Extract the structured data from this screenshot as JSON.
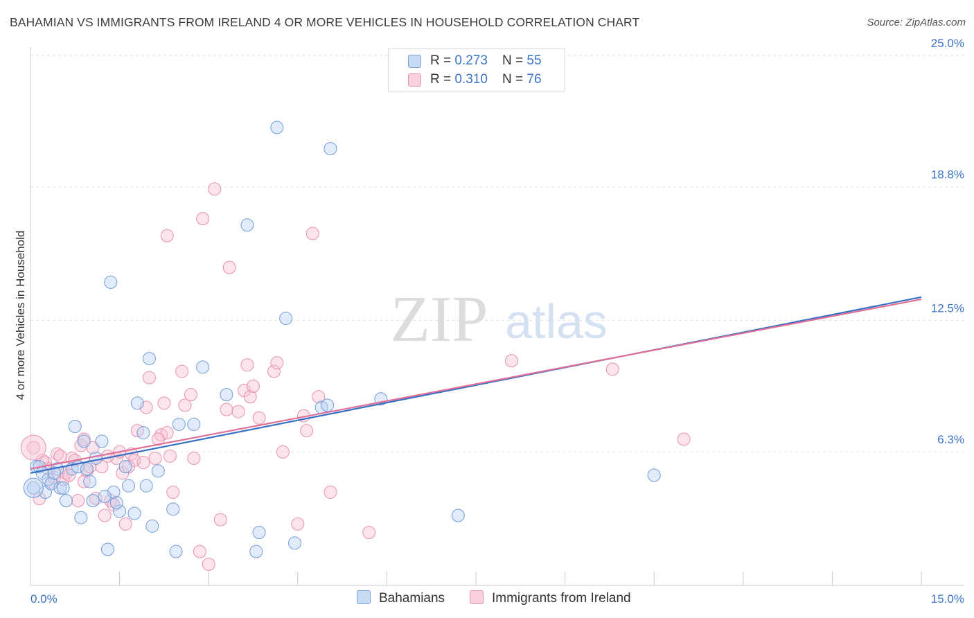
{
  "title": "BAHAMIAN VS IMMIGRANTS FROM IRELAND 4 OR MORE VEHICLES IN HOUSEHOLD CORRELATION CHART",
  "source": "Source: ZipAtlas.com",
  "watermark": {
    "zip": "ZIP",
    "atlas": "atlas"
  },
  "legend": {
    "rows": [
      {
        "r_label": "R = ",
        "r_value": "0.273",
        "n_label": "N = ",
        "n_value": "55",
        "color": "#9dbfef"
      },
      {
        "r_label": "R = ",
        "r_value": "0.310",
        "n_label": "N = ",
        "n_value": "76",
        "color": "#f4a9c1"
      }
    ]
  },
  "bottom_legend": {
    "bahamians": "Bahamians",
    "ireland": "Immigrants from Ireland"
  },
  "chart_data": {
    "type": "scatter",
    "title": "BAHAMIAN VS IMMIGRANTS FROM IRELAND 4 OR MORE VEHICLES IN HOUSEHOLD CORRELATION CHART",
    "xlabel": "",
    "ylabel": "4 or more Vehicles in Household",
    "xlim": [
      0,
      15
    ],
    "ylim": [
      0,
      25.0
    ],
    "x_ticks_labels": [
      "0.0%",
      "15.0%"
    ],
    "y_ticks": [
      6.3,
      12.5,
      18.8,
      25.0
    ],
    "y_ticks_labels": [
      "6.3%",
      "12.5%",
      "18.8%",
      "25.0%"
    ],
    "grid": true,
    "legend_position": "top-center",
    "colors": {
      "bahamians": "#5b8fd9",
      "ireland": "#e8799e",
      "bahamians_line": "#3570c4",
      "ireland_line": "#e0709a"
    },
    "series": [
      {
        "name": "Bahamians",
        "r": 0.273,
        "n": 55,
        "trend": {
          "x": [
            0,
            15
          ],
          "y": [
            5.3,
            13.6
          ]
        },
        "points": [
          [
            0.1,
            5.6
          ],
          [
            0.15,
            5.6
          ],
          [
            0.2,
            5.3
          ],
          [
            0.25,
            4.4
          ],
          [
            0.3,
            5.0
          ],
          [
            0.35,
            4.8
          ],
          [
            0.45,
            5.5
          ],
          [
            0.5,
            4.6
          ],
          [
            0.6,
            4.0
          ],
          [
            0.7,
            5.5
          ],
          [
            0.75,
            7.5
          ],
          [
            0.8,
            5.6
          ],
          [
            0.9,
            6.8
          ],
          [
            0.85,
            3.2
          ],
          [
            1.0,
            4.9
          ],
          [
            1.05,
            4.0
          ],
          [
            1.2,
            6.8
          ],
          [
            1.3,
            1.7
          ],
          [
            1.35,
            14.3
          ],
          [
            1.4,
            4.4
          ],
          [
            1.5,
            3.5
          ],
          [
            1.6,
            5.6
          ],
          [
            1.65,
            4.7
          ],
          [
            1.75,
            3.4
          ],
          [
            1.8,
            8.6
          ],
          [
            1.9,
            7.2
          ],
          [
            1.95,
            4.7
          ],
          [
            2.0,
            10.7
          ],
          [
            2.05,
            2.8
          ],
          [
            2.15,
            5.4
          ],
          [
            2.4,
            3.6
          ],
          [
            2.45,
            1.6
          ],
          [
            2.5,
            7.6
          ],
          [
            2.75,
            7.6
          ],
          [
            2.9,
            10.3
          ],
          [
            3.3,
            9.0
          ],
          [
            3.65,
            17.0
          ],
          [
            3.8,
            1.6
          ],
          [
            3.85,
            2.5
          ],
          [
            4.15,
            21.6
          ],
          [
            4.3,
            12.6
          ],
          [
            4.45,
            2.0
          ],
          [
            4.9,
            8.4
          ],
          [
            5.0,
            8.5
          ],
          [
            5.05,
            20.6
          ],
          [
            5.9,
            8.8
          ],
          [
            7.2,
            3.3
          ],
          [
            10.5,
            5.2
          ],
          [
            0.05,
            4.6
          ],
          [
            0.4,
            5.3
          ],
          [
            0.55,
            4.6
          ],
          [
            1.1,
            6.0
          ],
          [
            1.45,
            3.9
          ],
          [
            0.95,
            5.5
          ],
          [
            1.25,
            4.2
          ]
        ]
      },
      {
        "name": "Immigrants from Ireland",
        "r": 0.31,
        "n": 76,
        "trend": {
          "x": [
            0,
            15
          ],
          "y": [
            5.5,
            13.5
          ]
        },
        "points": [
          [
            0.05,
            6.5
          ],
          [
            0.15,
            4.1
          ],
          [
            0.25,
            5.8
          ],
          [
            0.35,
            4.8
          ],
          [
            0.45,
            6.2
          ],
          [
            0.55,
            5.0
          ],
          [
            0.6,
            5.3
          ],
          [
            0.7,
            6.0
          ],
          [
            0.8,
            4.0
          ],
          [
            0.85,
            6.6
          ],
          [
            0.9,
            6.9
          ],
          [
            0.95,
            5.4
          ],
          [
            1.1,
            4.1
          ],
          [
            1.2,
            5.6
          ],
          [
            1.25,
            3.3
          ],
          [
            1.35,
            4.0
          ],
          [
            1.45,
            6.0
          ],
          [
            1.5,
            6.3
          ],
          [
            1.55,
            5.3
          ],
          [
            1.6,
            2.9
          ],
          [
            1.7,
            6.2
          ],
          [
            1.75,
            5.9
          ],
          [
            1.8,
            7.3
          ],
          [
            1.9,
            5.8
          ],
          [
            1.95,
            8.4
          ],
          [
            2.0,
            9.8
          ],
          [
            2.1,
            6.0
          ],
          [
            2.2,
            7.1
          ],
          [
            2.25,
            8.6
          ],
          [
            2.3,
            7.2
          ],
          [
            2.35,
            6.1
          ],
          [
            2.4,
            4.4
          ],
          [
            2.55,
            10.1
          ],
          [
            2.6,
            8.5
          ],
          [
            2.7,
            9.0
          ],
          [
            2.75,
            6.0
          ],
          [
            2.85,
            1.6
          ],
          [
            2.9,
            17.3
          ],
          [
            3.0,
            1.0
          ],
          [
            3.1,
            18.7
          ],
          [
            3.2,
            3.1
          ],
          [
            3.3,
            8.3
          ],
          [
            3.35,
            15.0
          ],
          [
            3.5,
            8.2
          ],
          [
            3.6,
            9.2
          ],
          [
            3.65,
            10.4
          ],
          [
            3.7,
            8.9
          ],
          [
            3.75,
            9.4
          ],
          [
            3.85,
            7.9
          ],
          [
            4.1,
            10.1
          ],
          [
            4.15,
            10.5
          ],
          [
            4.25,
            6.3
          ],
          [
            4.5,
            2.9
          ],
          [
            4.6,
            8.0
          ],
          [
            4.65,
            7.3
          ],
          [
            4.75,
            16.6
          ],
          [
            4.85,
            8.9
          ],
          [
            5.05,
            4.4
          ],
          [
            5.7,
            2.5
          ],
          [
            8.1,
            10.6
          ],
          [
            9.8,
            10.2
          ],
          [
            11.0,
            6.9
          ],
          [
            2.3,
            16.5
          ],
          [
            0.4,
            5.1
          ],
          [
            0.5,
            6.1
          ],
          [
            0.75,
            5.9
          ],
          [
            1.0,
            5.6
          ],
          [
            1.3,
            6.1
          ],
          [
            1.4,
            3.8
          ],
          [
            1.65,
            5.6
          ],
          [
            0.65,
            5.2
          ],
          [
            0.3,
            5.5
          ],
          [
            0.2,
            5.9
          ],
          [
            1.05,
            6.5
          ],
          [
            0.9,
            4.9
          ],
          [
            2.15,
            6.9
          ]
        ]
      }
    ]
  }
}
